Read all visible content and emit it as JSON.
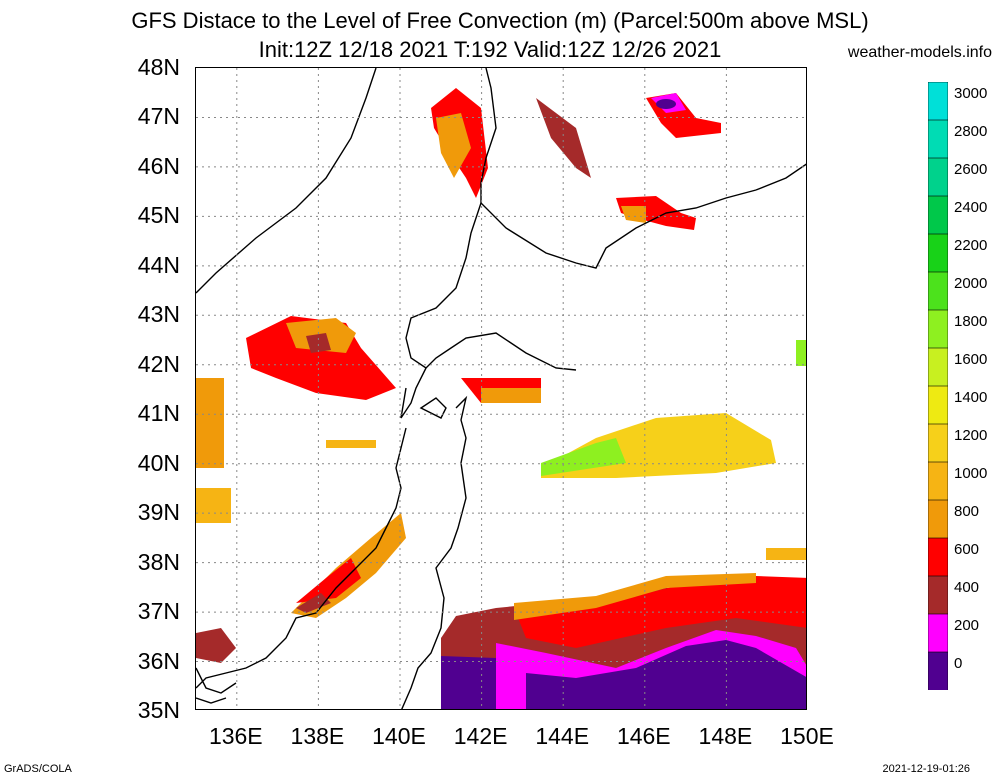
{
  "title": {
    "line1": "GFS Distace to the Level of Free Convection (m) (Parcel:500m above MSL)",
    "line2": "Init:12Z 12/18 2021 T:192 Valid:12Z 12/26 2021"
  },
  "site": "weather-models.info",
  "footer": {
    "left": "GrADS/COLA",
    "right": "2021-12-19-01:26"
  },
  "map": {
    "lat_labels": [
      "48N",
      "47N",
      "46N",
      "45N",
      "44N",
      "43N",
      "42N",
      "41N",
      "40N",
      "39N",
      "38N",
      "37N",
      "36N",
      "35N"
    ],
    "lon_labels": [
      "136E",
      "138E",
      "140E",
      "142E",
      "144E",
      "146E",
      "148E",
      "150E"
    ],
    "lon_range": [
      135,
      150
    ],
    "lat_range": [
      35,
      48
    ],
    "grid": true
  },
  "colorbar": {
    "labels": [
      "3000",
      "2800",
      "2600",
      "2400",
      "2200",
      "2000",
      "1800",
      "1600",
      "1400",
      "1200",
      "1000",
      "800",
      "600",
      "400",
      "200",
      "0"
    ],
    "colors": [
      "#00e0d8",
      "#00dcb4",
      "#00d28c",
      "#00c84a",
      "#18d218",
      "#4ce21c",
      "#8ef020",
      "#c8f020",
      "#eeea12",
      "#f6d01a",
      "#f6b414",
      "#f09a0a",
      "#ff0000",
      "#a52a2a",
      "#ff00ff",
      "#500090"
    ]
  }
}
